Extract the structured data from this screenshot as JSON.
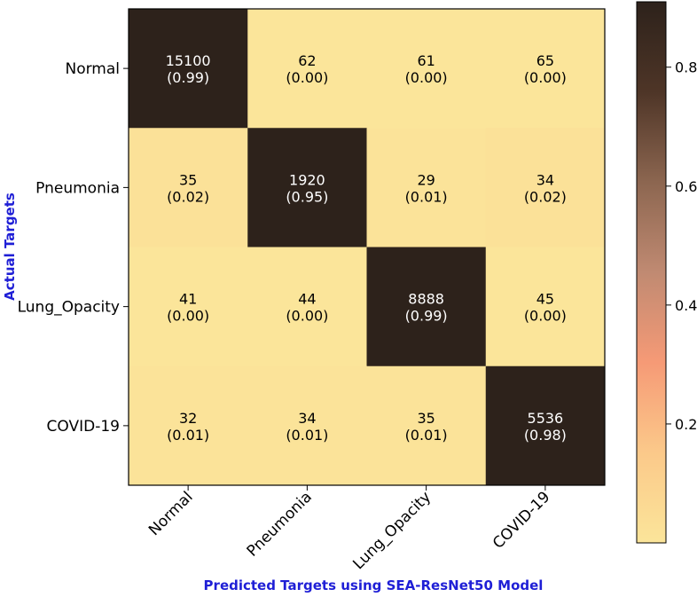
{
  "chart_data": {
    "type": "heatmap",
    "title": "",
    "xlabel": "Predicted Targets using SEA-ResNet50 Model",
    "ylabel": "Actual Targets",
    "x_categories": [
      "Normal",
      "Pneumonia",
      "Lung_Opacity",
      "COVID-19"
    ],
    "y_categories": [
      "Normal",
      "Pneumonia",
      "Lung_Opacity",
      "COVID-19"
    ],
    "counts": [
      [
        15100,
        62,
        61,
        65
      ],
      [
        35,
        1920,
        29,
        34
      ],
      [
        41,
        44,
        8888,
        45
      ],
      [
        32,
        34,
        35,
        5536
      ]
    ],
    "normalized": [
      [
        "0.99",
        "0.00",
        "0.00",
        "0.00"
      ],
      [
        "0.02",
        "0.95",
        "0.01",
        "0.02"
      ],
      [
        "0.00",
        "0.00",
        "0.99",
        "0.00"
      ],
      [
        "0.01",
        "0.01",
        "0.01",
        "0.98"
      ]
    ],
    "colorbar": {
      "ticks": [
        "0.2",
        "0.4",
        "0.6",
        "0.8"
      ],
      "tick_values": [
        0.2,
        0.4,
        0.6,
        0.8
      ],
      "range": [
        0.0,
        0.91
      ],
      "colormap": "copper_r-like",
      "stops": [
        "#fbe59a",
        "#fbc98a",
        "#f69a76",
        "#c08a72",
        "#8c6650",
        "#4e3527",
        "#2d221b"
      ]
    }
  }
}
